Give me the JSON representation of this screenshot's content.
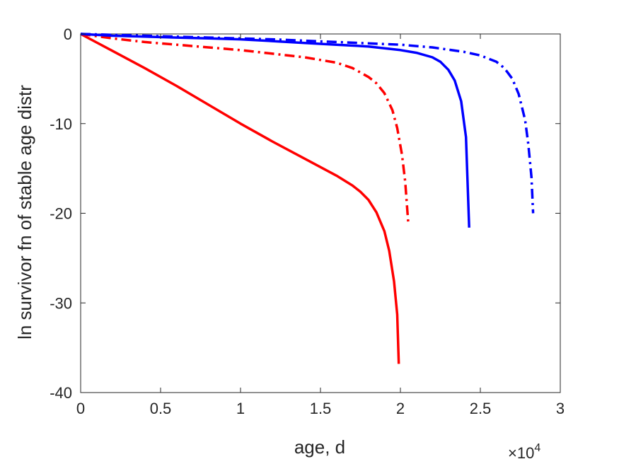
{
  "chart_data": {
    "type": "line",
    "xlabel": "age, d",
    "ylabel": "ln survivor fn of stable age distr",
    "x_multiplier": {
      "base": "×10",
      "exponent": "4"
    },
    "xlim": [
      0,
      30000
    ],
    "ylim": [
      -40,
      0
    ],
    "xticks": [
      0,
      5000,
      10000,
      15000,
      20000,
      25000,
      30000
    ],
    "xtick_labels": [
      "0",
      "0.5",
      "1",
      "1.5",
      "2",
      "2.5",
      "3"
    ],
    "yticks": [
      0,
      -10,
      -20,
      -30,
      -40
    ],
    "ytick_labels": [
      "0",
      "-10",
      "-20",
      "-30",
      "-40"
    ],
    "grid": false,
    "series": [
      {
        "color": "#ff0000",
        "style": "solid",
        "x": [
          0,
          2000,
          4000,
          6000,
          8000,
          10000,
          12000,
          14000,
          16000,
          17000,
          17500,
          18000,
          18500,
          19000,
          19300,
          19600,
          19800,
          19900
        ],
        "y": [
          0,
          -1.9,
          -3.8,
          -5.8,
          -7.9,
          -10.0,
          -12.0,
          -13.9,
          -15.8,
          -16.9,
          -17.6,
          -18.5,
          -19.9,
          -22.0,
          -24.2,
          -27.6,
          -31.3,
          -36.8
        ]
      },
      {
        "color": "#ff0000",
        "style": "dashdot",
        "x": [
          0,
          2000,
          4000,
          6000,
          8000,
          10000,
          12000,
          14000,
          16000,
          17000,
          18000,
          18500,
          19000,
          19500,
          19800,
          20100,
          20300,
          20500
        ],
        "y": [
          0,
          -0.5,
          -0.9,
          -1.2,
          -1.5,
          -1.8,
          -2.2,
          -2.6,
          -3.2,
          -3.8,
          -4.8,
          -5.5,
          -6.6,
          -8.5,
          -10.5,
          -13.5,
          -16.5,
          -21.3
        ]
      },
      {
        "color": "#0000ff",
        "style": "solid",
        "x": [
          0,
          2000,
          4000,
          6000,
          8000,
          10000,
          12000,
          14000,
          16000,
          18000,
          20000,
          21000,
          22000,
          22500,
          23000,
          23400,
          23800,
          24100,
          24300
        ],
        "y": [
          0,
          -0.2,
          -0.3,
          -0.4,
          -0.5,
          -0.6,
          -0.8,
          -1.0,
          -1.2,
          -1.4,
          -1.8,
          -2.1,
          -2.6,
          -3.1,
          -4.0,
          -5.2,
          -7.5,
          -11.5,
          -21.6
        ]
      },
      {
        "color": "#0000ff",
        "style": "dashdot",
        "x": [
          0,
          4000,
          8000,
          12000,
          16000,
          20000,
          22000,
          24000,
          25000,
          26000,
          26500,
          27000,
          27400,
          27800,
          28000,
          28200,
          28300
        ],
        "y": [
          0,
          -0.2,
          -0.4,
          -0.6,
          -0.9,
          -1.2,
          -1.5,
          -2.0,
          -2.4,
          -3.1,
          -3.8,
          -5.0,
          -6.7,
          -9.6,
          -12.3,
          -16.0,
          -20.0
        ]
      }
    ]
  }
}
